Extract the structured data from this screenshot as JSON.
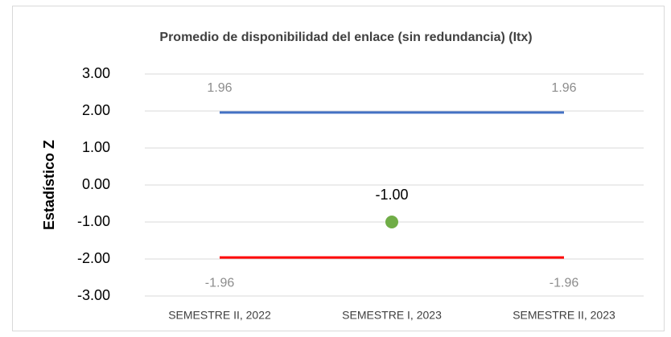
{
  "chart_data": {
    "type": "line",
    "title": "Promedio de disponibilidad del enlace (sin redundancia) (Itx)",
    "y_label": "Estadístico Z",
    "categories": [
      "SEMESTRE II, 2022",
      "SEMESTRE I, 2023",
      "SEMESTRE II, 2023"
    ],
    "series": [
      {
        "color": "#4472c4",
        "mode": "line",
        "label_position": "above",
        "label_color": "#8c8c8c",
        "values": [
          1.96,
          1.96,
          1.96
        ],
        "value_labels": [
          "1.96",
          null,
          "1.96"
        ]
      },
      {
        "color": "#ff0000",
        "mode": "line",
        "label_position": "below",
        "label_color": "#8c8c8c",
        "values": [
          -1.96,
          -1.96,
          -1.96
        ],
        "value_labels": [
          "-1.96",
          null,
          "-1.96"
        ]
      },
      {
        "color": "#70ad47",
        "mode": "marker",
        "label_position": "above",
        "label_color": "#000000",
        "values": [
          null,
          -1,
          null
        ],
        "value_labels": [
          null,
          "-1.00",
          null
        ]
      }
    ],
    "ylim": [
      -3,
      3
    ],
    "yticks": [
      {
        "value": 3,
        "label": "3.00"
      },
      {
        "value": 2,
        "label": "2.00"
      },
      {
        "value": 1,
        "label": "1.00"
      },
      {
        "value": 0,
        "label": "0.00"
      },
      {
        "value": -1,
        "label": "-1.00"
      },
      {
        "value": -2,
        "label": "-2.00"
      },
      {
        "value": -3,
        "label": "-3.00"
      }
    ],
    "grid": true
  }
}
